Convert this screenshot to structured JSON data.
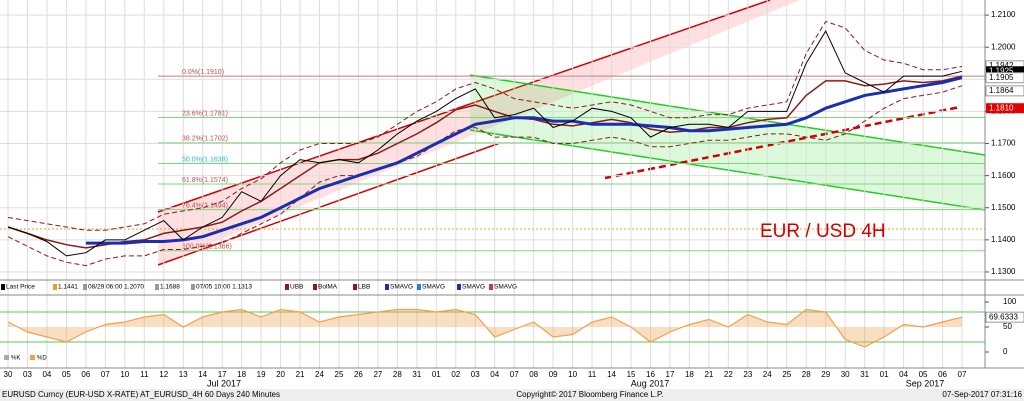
{
  "chart_data": {
    "type": "line",
    "annotation": "EUR / USD 4H",
    "categories": [
      "30",
      "03",
      "04",
      "05",
      "06",
      "07",
      "10",
      "11",
      "12",
      "13",
      "14",
      "17",
      "18",
      "19",
      "20",
      "21",
      "24",
      "25",
      "26",
      "27",
      "28",
      "31",
      "01",
      "02",
      "03",
      "04",
      "07",
      "08",
      "09",
      "10",
      "11",
      "14",
      "15",
      "16",
      "17",
      "18",
      "21",
      "22",
      "23",
      "24",
      "25",
      "28",
      "29",
      "30",
      "31",
      "01",
      "04",
      "05",
      "06",
      "07"
    ],
    "months": [
      "Jul 2017",
      "Aug 2017",
      "Sep 2017"
    ],
    "ylim": [
      1.1275,
      1.2147
    ],
    "yticks": [
      {
        "value": 1.13,
        "label": "1.1300"
      },
      {
        "value": 1.14,
        "label": "1.1400"
      },
      {
        "value": 1.15,
        "label": "1.1500"
      },
      {
        "value": 1.16,
        "label": "1.1600"
      },
      {
        "value": 1.17,
        "label": "1.1700"
      },
      {
        "value": 1.18,
        "label": "1.1800"
      },
      {
        "value": 1.19,
        "label": "1.1900"
      },
      {
        "value": 1.2,
        "label": "1.2000"
      },
      {
        "value": 1.21,
        "label": "1.2100"
      }
    ],
    "grid": true,
    "series": [
      {
        "name": "UBB",
        "color": "#8b1a1a",
        "dashed": true,
        "width": 1,
        "values": [
          1.147,
          1.146,
          1.145,
          1.144,
          1.143,
          1.143,
          1.144,
          1.145,
          1.148,
          1.149,
          1.15,
          1.152,
          1.156,
          1.159,
          1.164,
          1.168,
          1.17,
          1.17,
          1.17,
          1.172,
          1.176,
          1.18,
          1.183,
          1.187,
          1.189,
          1.187,
          1.184,
          1.183,
          1.182,
          1.181,
          1.182,
          1.183,
          1.182,
          1.18,
          1.178,
          1.178,
          1.179,
          1.179,
          1.181,
          1.182,
          1.183,
          1.198,
          1.208,
          1.206,
          1.199,
          1.196,
          1.195,
          1.193,
          1.193,
          1.194
        ]
      },
      {
        "name": "LBB",
        "color": "#8b1a1a",
        "dashed": true,
        "width": 1,
        "values": [
          1.141,
          1.138,
          1.135,
          1.133,
          1.132,
          1.134,
          1.135,
          1.135,
          1.137,
          1.137,
          1.138,
          1.139,
          1.142,
          1.145,
          1.148,
          1.153,
          1.158,
          1.16,
          1.16,
          1.162,
          1.164,
          1.166,
          1.17,
          1.174,
          1.175,
          1.172,
          1.172,
          1.172,
          1.17,
          1.17,
          1.171,
          1.172,
          1.171,
          1.169,
          1.169,
          1.17,
          1.171,
          1.171,
          1.172,
          1.173,
          1.173,
          1.172,
          1.171,
          1.173,
          1.177,
          1.181,
          1.184,
          1.185,
          1.186,
          1.188
        ]
      },
      {
        "name": "BolMA",
        "color": "#8b1a1a",
        "dashed": false,
        "width": 1.5,
        "values": [
          1.144,
          1.142,
          1.14,
          1.1385,
          1.1375,
          1.1385,
          1.1395,
          1.14,
          1.142,
          1.143,
          1.144,
          1.1455,
          1.149,
          1.152,
          1.156,
          1.16,
          1.164,
          1.165,
          1.165,
          1.167,
          1.17,
          1.173,
          1.1765,
          1.1805,
          1.182,
          1.18,
          1.178,
          1.1775,
          1.176,
          1.1755,
          1.1765,
          1.1775,
          1.1765,
          1.1745,
          1.1735,
          1.174,
          1.175,
          1.175,
          1.1765,
          1.1775,
          1.178,
          1.185,
          1.1895,
          1.1895,
          1.188,
          1.1885,
          1.1895,
          1.189,
          1.1895,
          1.191
        ]
      },
      {
        "name": "SMAVG",
        "color": "#1a2fb0",
        "dashed": false,
        "width": 3,
        "values": [
          null,
          null,
          null,
          null,
          1.139,
          1.139,
          1.139,
          1.1395,
          1.1395,
          1.14,
          1.141,
          1.143,
          1.145,
          1.147,
          1.15,
          1.153,
          1.156,
          1.158,
          1.16,
          1.162,
          1.164,
          1.167,
          1.17,
          1.173,
          1.176,
          1.177,
          1.178,
          1.178,
          1.177,
          1.177,
          1.176,
          1.176,
          1.176,
          1.1755,
          1.175,
          1.174,
          1.174,
          1.1745,
          1.175,
          1.1755,
          1.176,
          1.178,
          1.181,
          1.183,
          1.185,
          1.186,
          1.187,
          1.188,
          1.189,
          1.1905
        ]
      },
      {
        "name": "Last Price",
        "color": "#000000",
        "dashed": false,
        "width": 1,
        "values": [
          1.144,
          1.142,
          1.1395,
          1.135,
          1.136,
          1.14,
          1.14,
          1.143,
          1.146,
          1.14,
          1.144,
          1.147,
          1.155,
          1.152,
          1.16,
          1.165,
          1.164,
          1.165,
          1.164,
          1.168,
          1.173,
          1.177,
          1.18,
          1.184,
          1.187,
          1.178,
          1.179,
          1.181,
          1.175,
          1.177,
          1.181,
          1.18,
          1.178,
          1.172,
          1.175,
          1.176,
          1.176,
          1.175,
          1.18,
          1.18,
          1.18,
          1.195,
          1.205,
          1.192,
          1.189,
          1.186,
          1.191,
          1.191,
          1.191,
          1.1925
        ]
      }
    ],
    "fib_levels": [
      {
        "value": 1.191,
        "label": "0.0%(1.1910)"
      },
      {
        "value": 1.1781,
        "label": "23.6%(1.1781)"
      },
      {
        "value": 1.1702,
        "label": "38.2%(1.1702)"
      },
      {
        "value": 1.1638,
        "label": "50.0%(1.1638)"
      },
      {
        "value": 1.1574,
        "label": "61.8%(1.1574)"
      },
      {
        "value": 1.1494,
        "label": "76.4%(1.1494)"
      },
      {
        "value": 1.1366,
        "label": "100.0%(1.1366)"
      }
    ],
    "price_tags": [
      {
        "value": 1.1942,
        "label": "1.1942",
        "color": "#ffffff"
      },
      {
        "value": 1.1925,
        "label": "1.1925",
        "color": "#000000"
      },
      {
        "value": 1.1905,
        "label": "1.1905",
        "color": "#ffffff"
      },
      {
        "value": 1.1864,
        "label": "1.1864",
        "color": "#ffffff"
      },
      {
        "value": 1.181,
        "label": "1.1810",
        "color": "#e00000"
      }
    ],
    "legend_row": [
      "Last Price",
      "1.1441",
      "08/29 06:00 1.2070",
      "1.1688",
      "07/05 10:00 1.1313",
      "UBB",
      "BolMA",
      "LBB",
      "SMAVG",
      "SMAVG",
      "SMAVG",
      "SMAVG"
    ],
    "oscillator": {
      "ylim": [
        -32,
        114
      ],
      "yticks": [
        0,
        50,
        100
      ],
      "bands": [
        20,
        80
      ],
      "color": "#f0a050",
      "legend": [
        "%K",
        "%D"
      ],
      "tag": {
        "value": 69.6333,
        "label": "69.6333"
      },
      "values": [
        60,
        40,
        30,
        20,
        40,
        55,
        60,
        70,
        75,
        50,
        70,
        80,
        85,
        70,
        85,
        80,
        60,
        70,
        75,
        80,
        85,
        85,
        80,
        85,
        75,
        30,
        45,
        60,
        30,
        35,
        60,
        70,
        50,
        20,
        40,
        55,
        65,
        50,
        75,
        60,
        55,
        85,
        80,
        25,
        10,
        30,
        55,
        50,
        60,
        69.6333
      ]
    },
    "footer": {
      "left": "EURUSD Curncy (EUR-USD X-RATE) AT_EURUSD_4H 60 Days 240 Minutes",
      "center": "Copyright© 2017 Bloomberg Finance L.P.",
      "right": "07-Sep-2017 07:31:16"
    }
  }
}
